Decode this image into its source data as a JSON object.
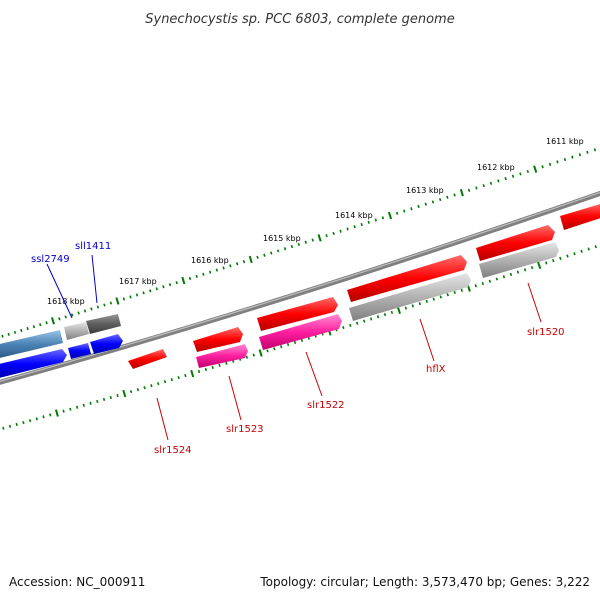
{
  "title": "Synechocystis sp. PCC 6803, complete genome",
  "footer": {
    "accession": "Accession: NC_000911",
    "summary": "Topology: circular; Length: 3,573,470 bp; Genes: 3,222"
  },
  "scale": {
    "tick_labels": [
      "1611 kbp",
      "1612 kbp",
      "1613 kbp",
      "1614 kbp",
      "1615 kbp",
      "1616 kbp",
      "1617 kbp",
      "1618 kbp"
    ],
    "tick_color": "#007a00"
  },
  "backbone_color": "#777777",
  "genes": [
    {
      "label": "slr1520",
      "color": "#ff0000",
      "label_color": "#cc0000"
    },
    {
      "label": "hflX",
      "color": "#ff0000",
      "label_color": "#cc0000"
    },
    {
      "label": "slr1522",
      "color": "#ff0000",
      "label_color": "#cc0000"
    },
    {
      "label": "slr1523",
      "color": "#ff1493",
      "label_color": "#cc0000"
    },
    {
      "label": "slr1524",
      "color": "#ff0000",
      "label_color": "#cc0000"
    },
    {
      "label": "sll1411",
      "color": "#0000ff",
      "label_color": "#0000cc"
    },
    {
      "label": "ssl2749",
      "color": "#0000ff",
      "label_color": "#0000cc"
    }
  ],
  "colors": {
    "red": "#ff0000",
    "magenta": "#ff1493",
    "gray": "#a8a8a8",
    "dark_gray": "#555555",
    "blue": "#0000ff",
    "steel_blue": "#4a82b4"
  }
}
